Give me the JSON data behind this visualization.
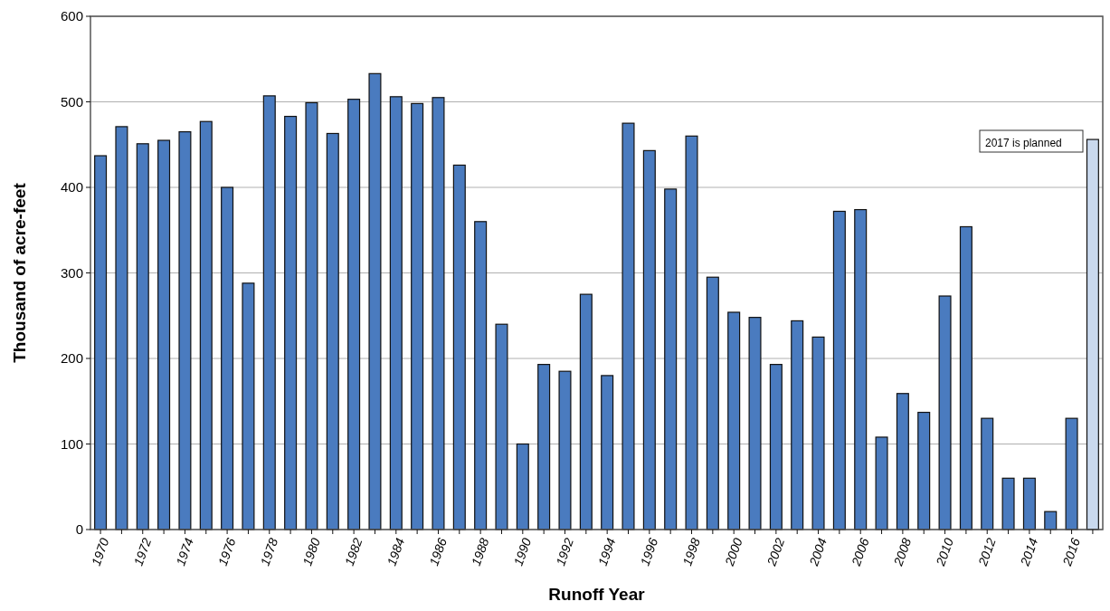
{
  "chart_data": {
    "type": "bar",
    "xlabel": "Runoff Year",
    "ylabel": "Thousand of acre-feet",
    "categories": [
      "1970",
      null,
      "1972",
      null,
      "1974",
      null,
      "1976",
      null,
      "1978",
      null,
      "1980",
      null,
      "1982",
      null,
      "1984",
      null,
      "1986",
      null,
      "1988",
      null,
      "1990",
      null,
      "1992",
      null,
      "1994",
      null,
      "1996",
      null,
      "1998",
      null,
      "2000",
      null,
      "2002",
      null,
      "2004",
      null,
      "2006",
      null,
      "2008",
      null,
      "2010",
      null,
      "2012",
      null,
      "2014",
      null,
      "2016",
      null
    ],
    "values": [
      437,
      471,
      451,
      455,
      465,
      477,
      400,
      288,
      507,
      483,
      499,
      463,
      503,
      533,
      506,
      498,
      505,
      426,
      360,
      240,
      100,
      193,
      185,
      275,
      180,
      475,
      443,
      398,
      460,
      295,
      254,
      248,
      193,
      244,
      225,
      372,
      374,
      108,
      159,
      137,
      273,
      354,
      130,
      60,
      60,
      21,
      130,
      456
    ],
    "colors": [
      "#4a7bbf",
      "#4a7bbf",
      "#4a7bbf",
      "#4a7bbf",
      "#4a7bbf",
      "#4a7bbf",
      "#4a7bbf",
      "#4a7bbf",
      "#4a7bbf",
      "#4a7bbf",
      "#4a7bbf",
      "#4a7bbf",
      "#4a7bbf",
      "#4a7bbf",
      "#4a7bbf",
      "#4a7bbf",
      "#4a7bbf",
      "#4a7bbf",
      "#4a7bbf",
      "#4a7bbf",
      "#4a7bbf",
      "#4a7bbf",
      "#4a7bbf",
      "#4a7bbf",
      "#4a7bbf",
      "#4a7bbf",
      "#4a7bbf",
      "#4a7bbf",
      "#4a7bbf",
      "#4a7bbf",
      "#4a7bbf",
      "#4a7bbf",
      "#4a7bbf",
      "#4a7bbf",
      "#4a7bbf",
      "#4a7bbf",
      "#4a7bbf",
      "#4a7bbf",
      "#4a7bbf",
      "#4a7bbf",
      "#4a7bbf",
      "#4a7bbf",
      "#4a7bbf",
      "#4a7bbf",
      "#4a7bbf",
      "#4a7bbf",
      "#4a7bbf",
      "#c9d9ee"
    ],
    "ylim": [
      0,
      600
    ],
    "yticks": [
      0,
      100,
      200,
      300,
      400,
      500,
      600
    ],
    "grid": "y",
    "annotations": [
      "2017 is planned"
    ]
  }
}
